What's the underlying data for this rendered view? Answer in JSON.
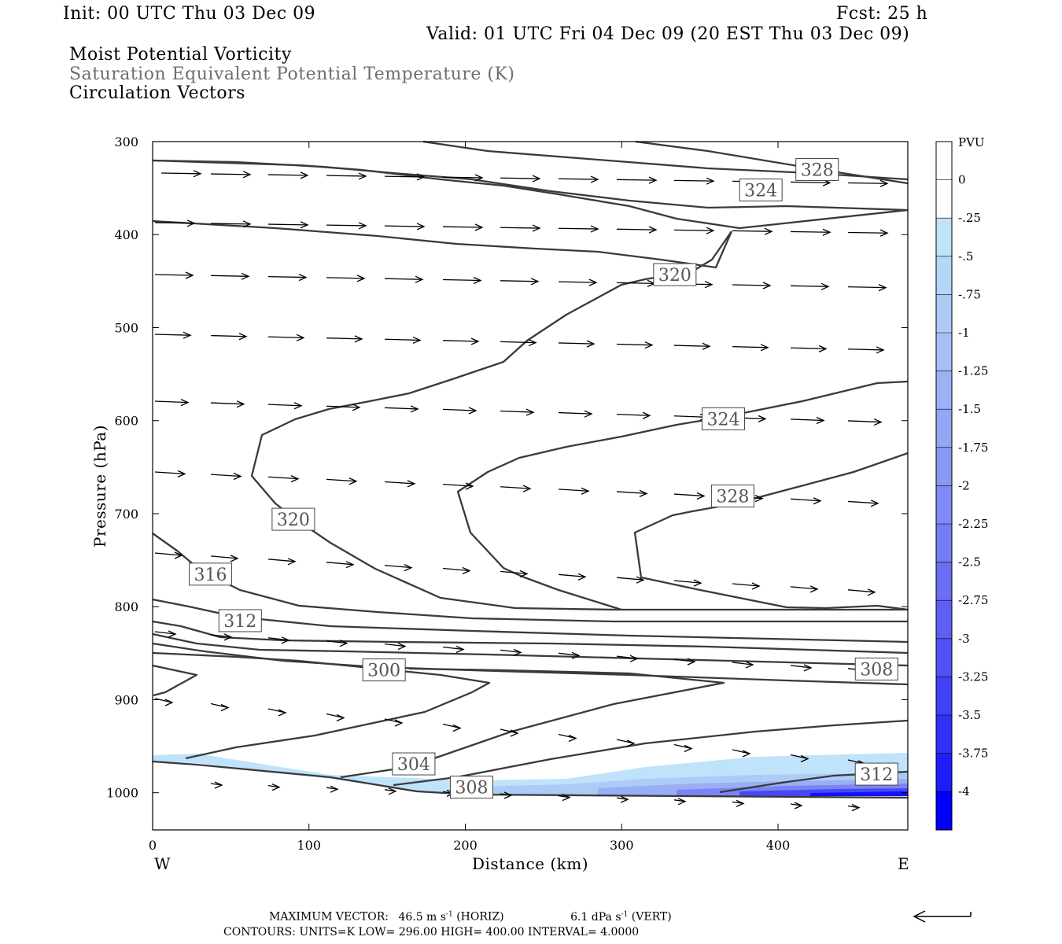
{
  "header": {
    "init": "Init: 00 UTC Thu 03 Dec 09",
    "fcst": "Fcst:   25 h",
    "valid": "Valid: 01 UTC Fri 04 Dec 09 (20 EST Thu 03 Dec 09)",
    "fields": [
      "Moist Potential Vorticity",
      "Saturation Equivalent Potential Temperature (K)",
      "Circulation Vectors"
    ]
  },
  "footer": {
    "max_vector_label": "MAXIMUM VECTOR:",
    "max_vector_horiz": "46.5 m s",
    "horiz_suffix": "(HORIZ)",
    "max_vector_vert": "6.1 dPa s",
    "vert_suffix": "(VERT)",
    "exponent": "-1",
    "contours": "CONTOURS:  UNITS=K  LOW=  296.00      HIGH=  400.00      INTERVAL=    4.0000"
  },
  "colors": {
    "contour": "#3a3a3a",
    "vector": "#000000",
    "pv_light": "#bfe3fb",
    "pv_dark": "#0000ff"
  },
  "chart_data": {
    "type": "cross-section",
    "xlabel": "Distance (km)",
    "ylabel": "Pressure (hPa)",
    "xlim": [
      0,
      483
    ],
    "ylim": [
      1040,
      300
    ],
    "x_ticks": [
      0,
      100,
      200,
      300,
      400
    ],
    "y_ticks": [
      300,
      400,
      500,
      600,
      700,
      800,
      900,
      1000
    ],
    "x_end_labels": {
      "left": "W",
      "right": "E"
    },
    "colorbar": {
      "units": "PVU",
      "labels": [
        "0",
        "-.25",
        "-.5",
        "-.75",
        "-1",
        "-1.25",
        "-1.5",
        "-1.75",
        "-2",
        "-2.25",
        "-2.5",
        "-2.75",
        "-3",
        "-3.25",
        "-3.5",
        "-3.75",
        "-4"
      ],
      "colors": [
        "#ffffff",
        "#bfe3fb",
        "#b3d7f9",
        "#aecbf8",
        "#a6bff7",
        "#9cb2f6",
        "#94a6f5",
        "#8a98f4",
        "#808af3",
        "#747cf3",
        "#6a6ef3",
        "#5e5ff4",
        "#5050f5",
        "#4040f7",
        "#3030f9",
        "#1e1efb",
        "#0000ff"
      ]
    },
    "contour_labels": [
      {
        "value": "328",
        "x": 425,
        "p": 330
      },
      {
        "value": "324",
        "x": 389,
        "p": 352
      },
      {
        "value": "320",
        "x": 334,
        "p": 443
      },
      {
        "value": "324",
        "x": 365,
        "p": 598
      },
      {
        "value": "328",
        "x": 371,
        "p": 681
      },
      {
        "value": "320",
        "x": 90,
        "p": 706
      },
      {
        "value": "316",
        "x": 37,
        "p": 765
      },
      {
        "value": "312",
        "x": 56,
        "p": 815
      },
      {
        "value": "300",
        "x": 148,
        "p": 868
      },
      {
        "value": "308",
        "x": 463,
        "p": 867
      },
      {
        "value": "304",
        "x": 167,
        "p": 969
      },
      {
        "value": "308",
        "x": 204,
        "p": 994
      },
      {
        "value": "312",
        "x": 463,
        "p": 980
      }
    ]
  }
}
